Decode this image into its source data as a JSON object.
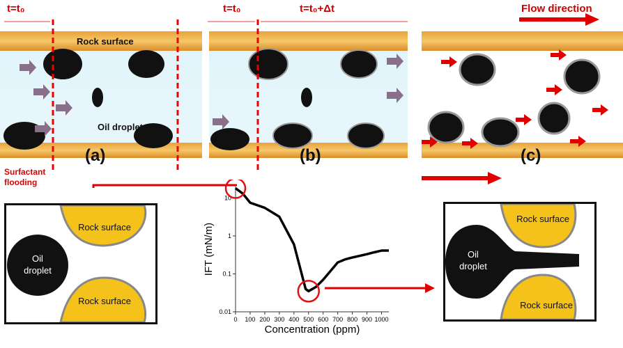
{
  "header": {
    "t0_label_a": "t=t₀",
    "t0_label_b": "t=t₀",
    "tdt_label": "t=t₀+Δt",
    "flow_label": "Flow direction"
  },
  "panels": {
    "a": {
      "letter": "(a)",
      "rock_label": "Rock surface",
      "oil_label": "Oil droplet"
    },
    "b": {
      "letter": "(b)"
    },
    "c": {
      "letter": "(c)"
    }
  },
  "side_label": {
    "line1": "Surfactant",
    "line2": "flooding"
  },
  "left_box": {
    "oil_line1": "Oil",
    "oil_line2": "droplet",
    "rock_top": "Rock surface",
    "rock_bottom": "Rock surface"
  },
  "right_box": {
    "oil_line1": "Oil",
    "oil_line2": "droplet",
    "rock_top": "Rock surface",
    "rock_bottom": "Rock surface"
  },
  "chart_data": {
    "type": "line",
    "xlabel": "Concentration (ppm)",
    "ylabel": "IFT (mN/m)",
    "yscale": "log",
    "xlim": [
      0,
      1050
    ],
    "ylim": [
      0.01,
      20
    ],
    "xticks": [
      "0",
      "100",
      "200",
      "300",
      "400",
      "500",
      "600",
      "700",
      "800",
      "900",
      "1000"
    ],
    "yticks": [
      "0.01",
      "0.1",
      "1",
      "10"
    ],
    "series": [
      {
        "x": [
          0,
          50,
          100,
          200,
          300,
          400,
          480,
          500,
          550,
          600,
          700,
          750,
          800,
          900,
          950,
          1000,
          1050
        ],
        "y": [
          18,
          13,
          7.5,
          5.5,
          3.2,
          0.6,
          0.04,
          0.035,
          0.045,
          0.07,
          0.2,
          0.24,
          0.27,
          0.33,
          0.37,
          0.41,
          0.41
        ]
      }
    ],
    "colors": {
      "line": "#000000",
      "highlight": "#e01010"
    }
  }
}
